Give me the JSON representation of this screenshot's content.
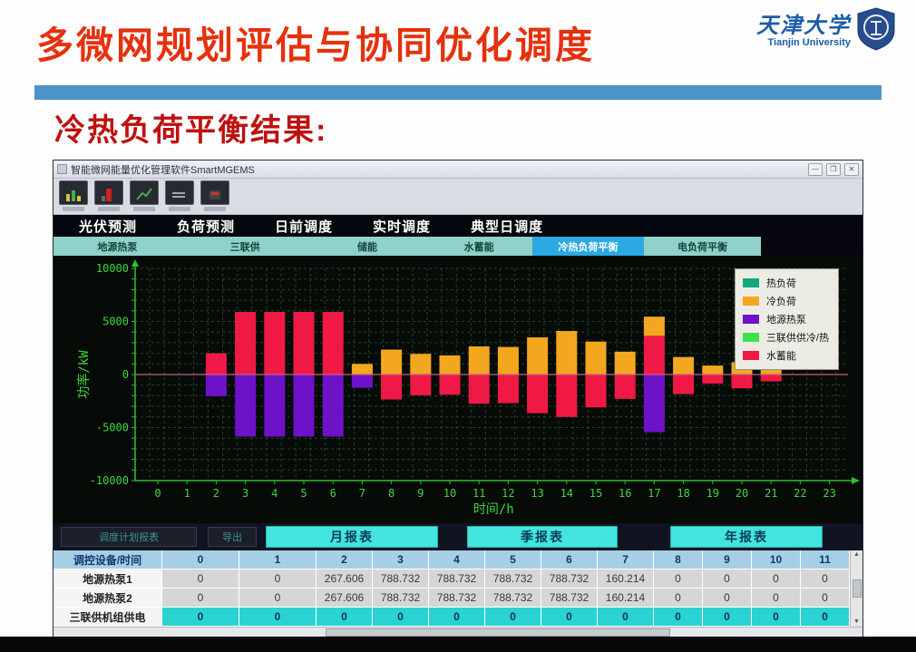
{
  "page": {
    "title": "多微网规划评估与协同优化调度",
    "subtitle": "冷热负荷平衡结果:",
    "accent_red": "#e5310e",
    "underline_blue": "#4b94c7"
  },
  "logo": {
    "name_cn": "天津大学",
    "name_en": "Tianjin University"
  },
  "window": {
    "title": "智能微网能量优化管理软件SmartMGEMS",
    "controls": {
      "minimize": "—",
      "maximize": "❐",
      "close": "✕"
    },
    "toolbar_icons": [
      "realtime-monitor-icon",
      "alarm-event-icon",
      "energy-manage-icon",
      "history-data-icon",
      "history-event-icon"
    ],
    "tabs": [
      "光伏预测",
      "负荷预测",
      "日前调度",
      "实时调度",
      "典型日调度"
    ],
    "subtabs": [
      {
        "label": "地源热泵",
        "active": false
      },
      {
        "label": "三联供",
        "active": false
      },
      {
        "label": "储能",
        "active": false
      },
      {
        "label": "水蓄能",
        "active": false
      },
      {
        "label": "冷热负荷平衡",
        "active": true
      },
      {
        "label": "电负荷平衡",
        "active": false
      }
    ],
    "left_buttons": [
      "调度计划报表",
      "导出"
    ],
    "report_buttons": [
      "月报表",
      "季报表",
      "年报表"
    ],
    "table": {
      "header": [
        "调控设备/时间",
        "0",
        "1",
        "2",
        "3",
        "4",
        "5",
        "6",
        "7",
        "8",
        "9",
        "10",
        "11"
      ],
      "rows": [
        {
          "label": "地源热泵1",
          "style": "gray",
          "values": [
            "0",
            "0",
            "267.606",
            "788.732",
            "788.732",
            "788.732",
            "788.732",
            "160.214",
            "0",
            "0",
            "0",
            "0"
          ]
        },
        {
          "label": "地源热泵2",
          "style": "gray",
          "values": [
            "0",
            "0",
            "267.606",
            "788.732",
            "788.732",
            "788.732",
            "788.732",
            "160.214",
            "0",
            "0",
            "0",
            "0"
          ]
        },
        {
          "label": "三联供机组供电",
          "style": "cyan",
          "values": [
            "0",
            "0",
            "0",
            "0",
            "0",
            "0",
            "0",
            "0",
            "0",
            "0",
            "0",
            "0"
          ]
        }
      ]
    }
  },
  "chart_data": {
    "type": "bar",
    "stacked": true,
    "title": "",
    "xlabel": "时间/h",
    "ylabel": "功率/kW",
    "x": [
      0,
      1,
      2,
      3,
      4,
      5,
      6,
      7,
      8,
      9,
      10,
      11,
      12,
      13,
      14,
      15,
      16,
      17,
      18,
      19,
      20,
      21,
      22,
      23
    ],
    "ylim": [
      -10000,
      10000
    ],
    "yticks": [
      10000,
      5000,
      0,
      -5000,
      -10000
    ],
    "grid": true,
    "background": "#070b07",
    "grid_color": "#1d4727",
    "axis_color": "#2fbf2f",
    "tick_color": "#3fd53f",
    "zero_line_color": "#c2637f",
    "legend_position": "top-right",
    "legend": [
      {
        "name": "热负荷",
        "color": "#17a67e"
      },
      {
        "name": "冷负荷",
        "color": "#f3a71e"
      },
      {
        "name": "地源热泵",
        "color": "#6d12c9"
      },
      {
        "name": "三联供供冷/热",
        "color": "#3be34b"
      },
      {
        "name": "水蓄能",
        "color": "#f01945"
      }
    ],
    "series": [
      {
        "name": "水蓄能",
        "color": "#f01945",
        "values": [
          0,
          0,
          2000,
          5900,
          5900,
          5900,
          5900,
          0,
          -2350,
          -1950,
          -1900,
          -2750,
          -2700,
          -3650,
          -4000,
          -3100,
          -2300,
          3650,
          -1850,
          -850,
          -1300,
          -650,
          0,
          0
        ]
      },
      {
        "name": "冷负荷",
        "color": "#f3a71e",
        "values": [
          0,
          0,
          0,
          0,
          0,
          0,
          0,
          1000,
          2350,
          1950,
          1800,
          2650,
          2600,
          3500,
          4100,
          3100,
          2150,
          1800,
          1650,
          850,
          1150,
          500,
          0,
          0
        ]
      },
      {
        "name": "地源热泵",
        "color": "#6d12c9",
        "values": [
          0,
          0,
          -2050,
          -5850,
          -5850,
          -5850,
          -5850,
          -1250,
          0,
          0,
          0,
          0,
          0,
          0,
          0,
          0,
          0,
          -5430,
          0,
          0,
          0,
          0,
          0,
          0
        ]
      },
      {
        "name": "热负荷",
        "color": "#17a67e",
        "values": [
          0,
          0,
          0,
          0,
          0,
          0,
          0,
          0,
          0,
          0,
          0,
          0,
          0,
          0,
          0,
          0,
          0,
          0,
          0,
          0,
          0,
          0,
          0,
          0
        ]
      },
      {
        "name": "三联供供冷/热",
        "color": "#3be34b",
        "values": [
          0,
          0,
          0,
          0,
          0,
          0,
          0,
          0,
          0,
          0,
          0,
          0,
          0,
          0,
          0,
          0,
          0,
          0,
          0,
          0,
          0,
          0,
          0,
          0
        ]
      }
    ]
  }
}
